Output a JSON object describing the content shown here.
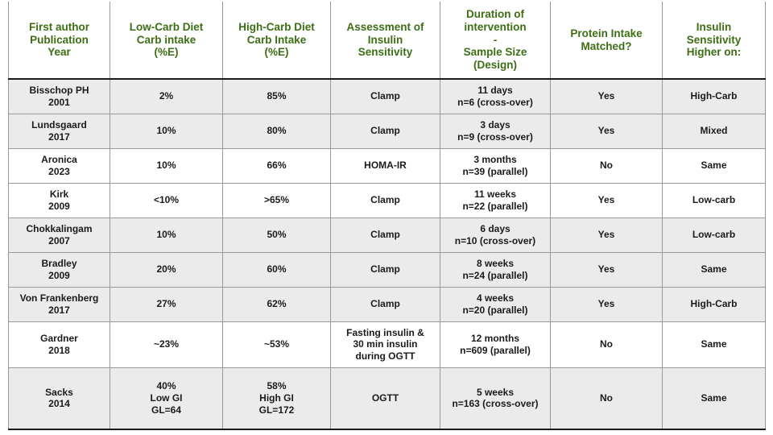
{
  "colors": {
    "header_text": "#3d6e15",
    "body_text": "#1b1b1b",
    "row_shade": "#ebebeb",
    "grid_line": "#999999",
    "strong_line": "#1a1a1a",
    "background": "#ffffff"
  },
  "chart_data": {
    "type": "table",
    "title": "",
    "legend": [],
    "columns": [
      "First author\nPublication\nYear",
      "Low-Carb Diet\nCarb intake\n(%E)",
      "High-Carb Diet\nCarb Intake\n(%E)",
      "Assessment of\nInsulin\nSensitivity",
      "Duration of\nintervention\n-\nSample Size\n(Design)",
      "Protein Intake\nMatched?",
      "Insulin\nSensitivity\nHigher on:"
    ],
    "rows": [
      [
        "Bisschop PH\n2001",
        "2%",
        "85%",
        "Clamp",
        "11 days\nn=6 (cross-over)",
        "Yes",
        "High-Carb"
      ],
      [
        "Lundsgaard\n2017",
        "10%",
        "80%",
        "Clamp",
        "3 days\nn=9 (cross-over)",
        "Yes",
        "Mixed"
      ],
      [
        "Aronica\n2023",
        "10%",
        "66%",
        "HOMA-IR",
        "3 months\nn=39 (parallel)",
        "No",
        "Same"
      ],
      [
        "Kirk\n2009",
        "<10%",
        ">65%",
        "Clamp",
        "11 weeks\nn=22 (parallel)",
        "Yes",
        "Low-carb"
      ],
      [
        "Chokkalingam\n2007",
        "10%",
        "50%",
        "Clamp",
        "6 days\nn=10 (cross-over)",
        "Yes",
        "Low-carb"
      ],
      [
        "Bradley\n2009",
        "20%",
        "60%",
        "Clamp",
        "8 weeks\nn=24 (parallel)",
        "Yes",
        "Same"
      ],
      [
        "Von Frankenberg\n2017",
        "27%",
        "62%",
        "Clamp",
        "4 weeks\nn=20 (parallel)",
        "Yes",
        "High-Carb"
      ],
      [
        "Gardner\n2018",
        "~23%",
        "~53%",
        "Fasting insulin &\n30 min insulin\nduring OGTT",
        "12 months\nn=609 (parallel)",
        "No",
        "Same"
      ],
      [
        "Sacks\n2014",
        "40%\nLow GI\nGL=64",
        "58%\nHigh GI\nGL=172",
        "OGTT",
        "5 weeks\nn=163 (cross-over)",
        "No",
        "Same"
      ]
    ]
  }
}
